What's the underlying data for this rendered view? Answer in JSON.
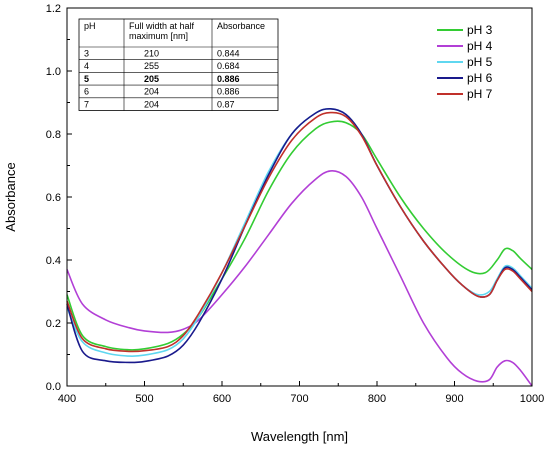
{
  "chart_data": {
    "type": "line",
    "xlabel": "Wavelength [nm]",
    "ylabel": "Absorbance",
    "xlim": [
      400,
      1000
    ],
    "ylim": [
      0.0,
      1.2
    ],
    "xticks": [
      400,
      500,
      600,
      700,
      800,
      900,
      1000
    ],
    "yticks": [
      0.0,
      0.2,
      0.4,
      0.6,
      0.8,
      1.0,
      1.2
    ],
    "xtick_labels": [
      "400",
      "500",
      "600",
      "700",
      "800",
      "900",
      "1000"
    ],
    "ytick_labels": [
      "0.0",
      "0.2",
      "0.4",
      "0.6",
      "0.8",
      "1.0",
      "1.2"
    ],
    "grid": false,
    "legend_position": "top-right",
    "series": [
      {
        "name": "pH 3",
        "color": "#33cc33",
        "x": [
          400,
          420,
          450,
          480,
          500,
          530,
          550,
          570,
          600,
          630,
          660,
          690,
          720,
          740,
          760,
          780,
          800,
          830,
          860,
          890,
          920,
          940,
          955,
          965,
          975,
          985,
          1000
        ],
        "y": [
          0.29,
          0.16,
          0.125,
          0.115,
          0.118,
          0.135,
          0.165,
          0.22,
          0.34,
          0.47,
          0.62,
          0.74,
          0.815,
          0.838,
          0.836,
          0.8,
          0.72,
          0.6,
          0.5,
          0.42,
          0.365,
          0.36,
          0.4,
          0.435,
          0.43,
          0.405,
          0.37
        ]
      },
      {
        "name": "pH 4",
        "color": "#b23fd6",
        "x": [
          400,
          420,
          450,
          480,
          500,
          530,
          550,
          570,
          600,
          630,
          660,
          690,
          720,
          740,
          760,
          780,
          800,
          830,
          860,
          890,
          910,
          930,
          945,
          955,
          965,
          975,
          985,
          1000
        ],
        "y": [
          0.37,
          0.26,
          0.21,
          0.185,
          0.175,
          0.17,
          0.18,
          0.21,
          0.29,
          0.38,
          0.48,
          0.58,
          0.655,
          0.683,
          0.665,
          0.6,
          0.5,
          0.35,
          0.2,
          0.09,
          0.04,
          0.015,
          0.02,
          0.06,
          0.08,
          0.075,
          0.05,
          0.0
        ]
      },
      {
        "name": "pH 5",
        "color": "#5fd7f0",
        "x": [
          400,
          420,
          450,
          480,
          500,
          530,
          550,
          570,
          600,
          630,
          660,
          690,
          720,
          740,
          760,
          780,
          800,
          830,
          860,
          890,
          910,
          930,
          945,
          955,
          965,
          975,
          985,
          1000
        ],
        "y": [
          0.25,
          0.14,
          0.105,
          0.095,
          0.098,
          0.115,
          0.15,
          0.22,
          0.36,
          0.52,
          0.68,
          0.8,
          0.865,
          0.88,
          0.862,
          0.8,
          0.7,
          0.57,
          0.46,
          0.37,
          0.32,
          0.29,
          0.3,
          0.34,
          0.38,
          0.375,
          0.35,
          0.31
        ]
      },
      {
        "name": "pH 6",
        "color": "#1a1a8c",
        "x": [
          400,
          420,
          450,
          480,
          500,
          530,
          550,
          570,
          600,
          630,
          660,
          690,
          720,
          740,
          760,
          780,
          800,
          830,
          860,
          890,
          910,
          930,
          945,
          955,
          965,
          975,
          985,
          1000
        ],
        "y": [
          0.26,
          0.11,
          0.08,
          0.075,
          0.078,
          0.095,
          0.13,
          0.2,
          0.34,
          0.51,
          0.67,
          0.8,
          0.865,
          0.88,
          0.862,
          0.8,
          0.7,
          0.57,
          0.46,
          0.37,
          0.32,
          0.285,
          0.29,
          0.335,
          0.375,
          0.37,
          0.345,
          0.305
        ]
      },
      {
        "name": "pH 7",
        "color": "#c0302a",
        "x": [
          400,
          420,
          450,
          480,
          500,
          530,
          550,
          570,
          600,
          630,
          660,
          690,
          720,
          740,
          760,
          780,
          800,
          830,
          860,
          890,
          910,
          930,
          945,
          955,
          965,
          975,
          985,
          1000
        ],
        "y": [
          0.27,
          0.15,
          0.118,
          0.11,
          0.112,
          0.125,
          0.16,
          0.23,
          0.36,
          0.51,
          0.66,
          0.78,
          0.85,
          0.868,
          0.855,
          0.795,
          0.7,
          0.57,
          0.46,
          0.37,
          0.32,
          0.285,
          0.29,
          0.335,
          0.37,
          0.365,
          0.34,
          0.3
        ]
      }
    ],
    "table": {
      "headers": [
        "pH",
        "Full width at half maximum [nm]",
        "Absorbance"
      ],
      "header_lines": [
        [
          "pH"
        ],
        [
          "Full width at half",
          "maximum [nm]"
        ],
        [
          "Absorbance"
        ]
      ],
      "rows": [
        {
          "cells": [
            "3",
            "210",
            "0.844"
          ],
          "bold": false
        },
        {
          "cells": [
            "4",
            "255",
            "0.684"
          ],
          "bold": false
        },
        {
          "cells": [
            "5",
            "205",
            "0.886"
          ],
          "bold": true
        },
        {
          "cells": [
            "6",
            "204",
            "0.886"
          ],
          "bold": false
        },
        {
          "cells": [
            "7",
            "204",
            "0.87"
          ],
          "bold": false
        }
      ]
    }
  }
}
